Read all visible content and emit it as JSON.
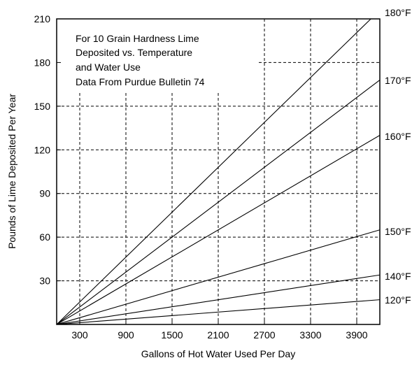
{
  "chart_data": {
    "type": "line",
    "title": "",
    "xlabel": "Gallons of Hot Water Used Per Day",
    "ylabel": "Pounds of Lime Deposited Per Year",
    "xlim": [
      0,
      4200
    ],
    "ylim": [
      0,
      210
    ],
    "x_ticks": [
      300,
      900,
      1500,
      2100,
      2700,
      3300,
      3900
    ],
    "x_tick_labels": [
      "300",
      "900",
      "1500",
      "2100",
      "2700",
      "3300",
      "3900"
    ],
    "y_ticks": [
      30,
      60,
      90,
      120,
      150,
      180,
      210
    ],
    "y_tick_labels": [
      "30",
      "60",
      "90",
      "120",
      "150",
      "180",
      "210"
    ],
    "grid": "dashed",
    "legend": "right",
    "annotation": {
      "lines": [
        "For 10 Grain Hardness Lime",
        "Deposited vs. Temperature",
        "and Water Use",
        "Data From Purdue Bulletin 74"
      ]
    },
    "series": [
      {
        "name": "180°F",
        "x": [
          0,
          4200
        ],
        "y": [
          0,
          216
        ]
      },
      {
        "name": "170°F",
        "x": [
          0,
          4200
        ],
        "y": [
          0,
          168
        ]
      },
      {
        "name": "160°F",
        "x": [
          0,
          4200
        ],
        "y": [
          0,
          130
        ]
      },
      {
        "name": "150°F",
        "x": [
          0,
          4200
        ],
        "y": [
          0,
          65
        ]
      },
      {
        "name": "140°F",
        "x": [
          0,
          4200
        ],
        "y": [
          0,
          34
        ]
      },
      {
        "name": "120°F",
        "x": [
          0,
          4200
        ],
        "y": [
          0,
          17
        ]
      }
    ]
  }
}
